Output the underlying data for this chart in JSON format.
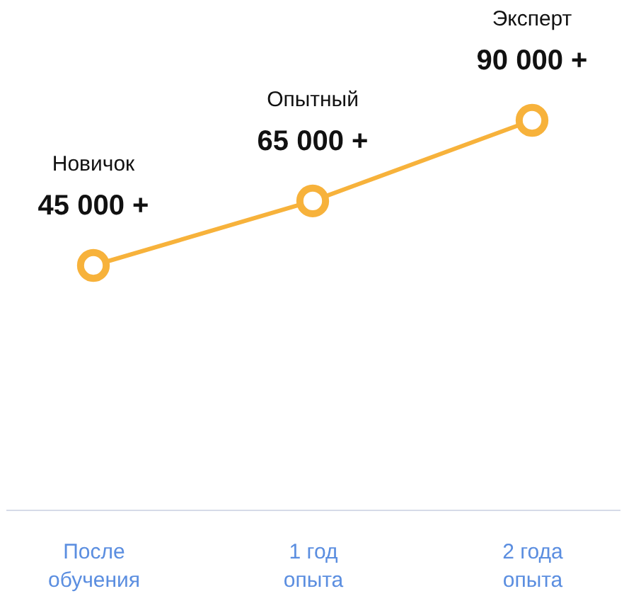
{
  "chart_data": {
    "type": "line",
    "categories": [
      "После обучения",
      "1 год опыта",
      "2 года опыта"
    ],
    "series": [
      {
        "color": "#f7b23b",
        "values": [
          45000,
          65000,
          90000
        ],
        "value_labels": [
          "45 000 +",
          "65 000 +",
          "90 000 +"
        ]
      }
    ],
    "annotations": [
      "Новичок",
      "Опытный",
      "Эксперт"
    ],
    "marker": "circle",
    "grid": false,
    "tick_labels": "x"
  }
}
